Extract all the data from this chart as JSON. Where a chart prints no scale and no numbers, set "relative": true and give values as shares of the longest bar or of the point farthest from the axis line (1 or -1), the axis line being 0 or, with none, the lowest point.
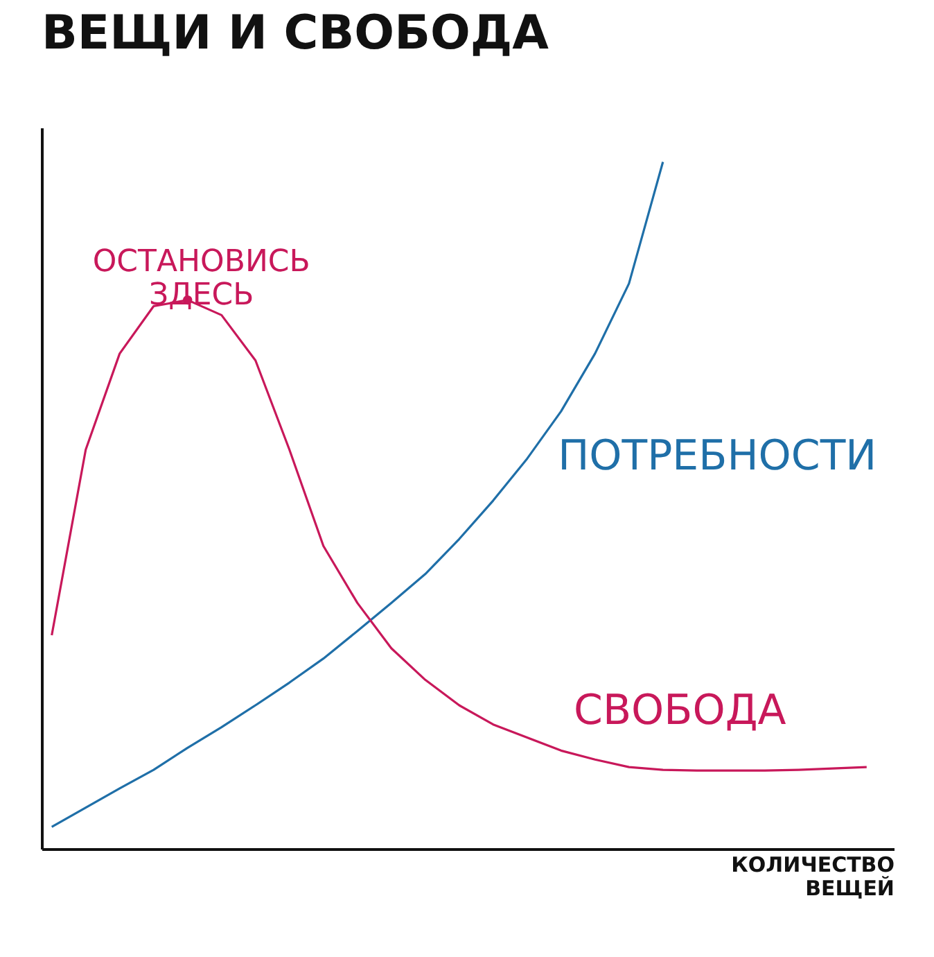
{
  "chart_data": {
    "type": "line",
    "title": "ВЕЩИ И СВОБОДА",
    "xlabel": "КОЛИЧЕСТВО ВЕЩЕЙ",
    "relative": true,
    "grid": false,
    "legend": false,
    "tick_labels": false,
    "marker": "none",
    "line_style": "solid",
    "categories": [
      null,
      null,
      null,
      null,
      null,
      null,
      null,
      null,
      null,
      null,
      null,
      null,
      null,
      null,
      null,
      null,
      null,
      null,
      null,
      null,
      null,
      null,
      null,
      null,
      null
    ],
    "series": [
      {
        "name": "ПОТРЕБНОСТИ",
        "type": "line",
        "color": "#1f6fa8",
        "values": [
          0.032,
          0.06,
          0.088,
          0.115,
          0.147,
          0.177,
          0.209,
          0.242,
          0.277,
          0.317,
          0.358,
          0.4,
          0.451,
          0.507,
          0.568,
          0.637,
          0.721,
          0.823,
          1.0,
          null,
          null,
          null,
          null,
          null,
          null
        ]
      },
      {
        "name": "СВОБОДА",
        "type": "line",
        "color": "#c8185a",
        "values": [
          0.311,
          0.581,
          0.721,
          0.79,
          0.799,
          0.777,
          0.711,
          0.581,
          0.441,
          0.358,
          0.292,
          0.246,
          0.209,
          0.181,
          0.162,
          0.143,
          0.13,
          0.119,
          0.115,
          0.114,
          0.114,
          0.114,
          0.115,
          0.117,
          0.119
        ]
      }
    ],
    "annotations": [
      {
        "text": "ОСТАНОВИСЬ ЗДЕСЬ",
        "y": 0.799
      }
    ]
  }
}
